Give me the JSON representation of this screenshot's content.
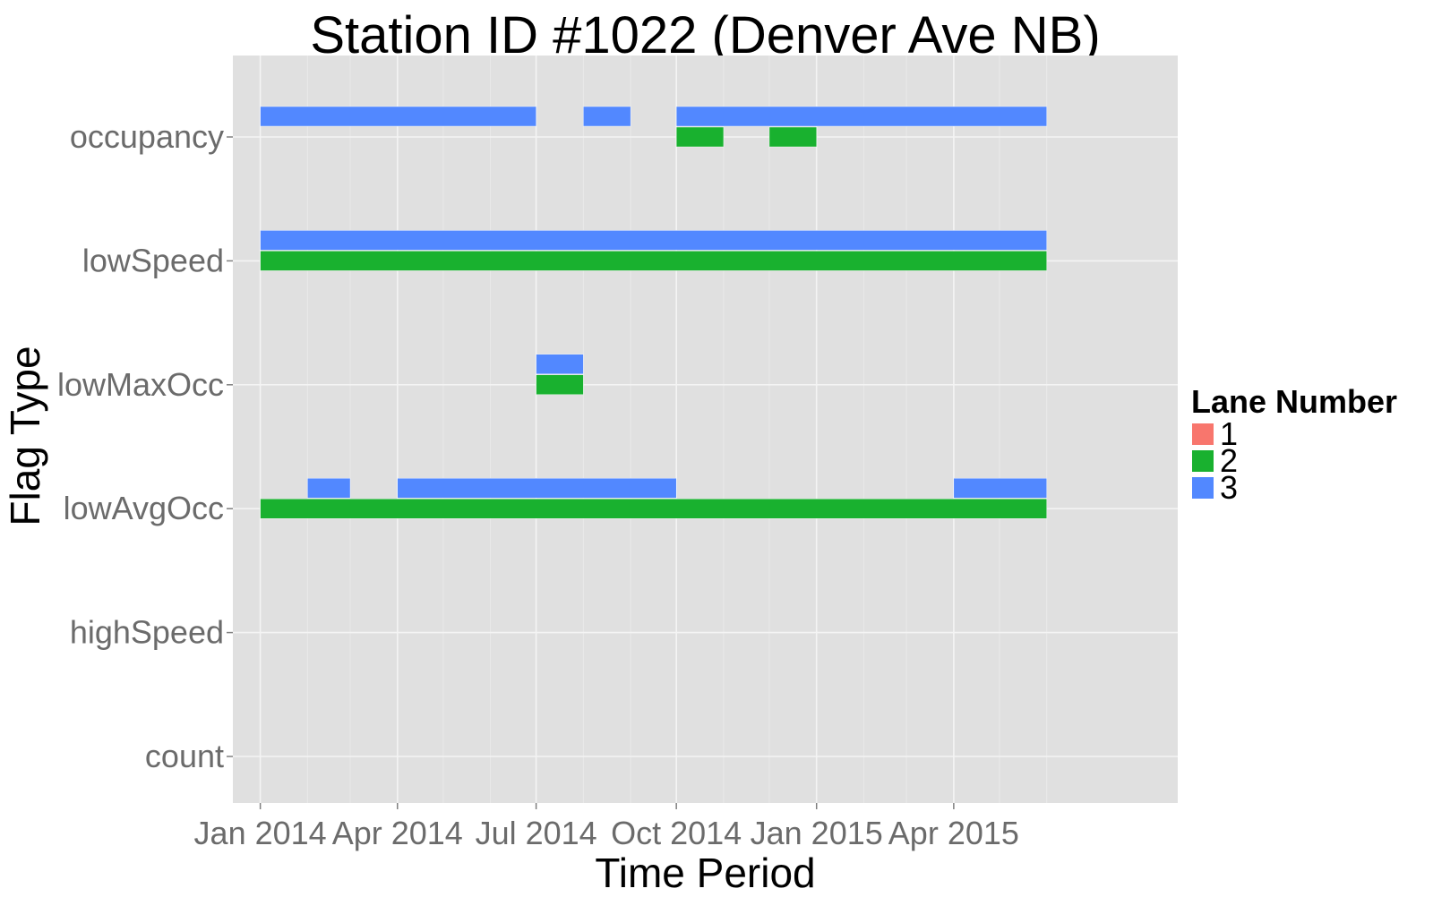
{
  "chart_data": {
    "type": "timeline",
    "title": "Station ID #1022 (Denver Ave NB)",
    "xlabel": "Time Period",
    "ylabel": "Flag Type",
    "x_ticks": [
      "Jan 2014",
      "Apr 2014",
      "Jul 2014",
      "Oct 2014",
      "Jan 2015",
      "Apr 2015"
    ],
    "xlim": [
      "2013-12-14",
      "2015-08-26"
    ],
    "categories": [
      "count",
      "highSpeed",
      "lowAvgOcc",
      "lowMaxOcc",
      "lowSpeed",
      "occupancy"
    ],
    "grid": true,
    "legend": {
      "title": "Lane Number",
      "placement": "right",
      "items": [
        {
          "label": "1",
          "color": "#f8766d"
        },
        {
          "label": "2",
          "color": "#19b12f"
        },
        {
          "label": "3",
          "color": "#5288ff"
        }
      ]
    },
    "series": [
      {
        "name": "3",
        "color": "#5288ff",
        "segments": [
          {
            "flag": "occupancy",
            "start": "2014-01-01",
            "end": "2014-07-01"
          },
          {
            "flag": "occupancy",
            "start": "2014-08-01",
            "end": "2014-09-01"
          },
          {
            "flag": "occupancy",
            "start": "2014-10-01",
            "end": "2015-06-01"
          },
          {
            "flag": "lowSpeed",
            "start": "2014-01-01",
            "end": "2015-06-01"
          },
          {
            "flag": "lowMaxOcc",
            "start": "2014-07-01",
            "end": "2014-08-01"
          },
          {
            "flag": "lowAvgOcc",
            "start": "2014-02-01",
            "end": "2014-03-01"
          },
          {
            "flag": "lowAvgOcc",
            "start": "2014-04-01",
            "end": "2014-10-01"
          },
          {
            "flag": "lowAvgOcc",
            "start": "2015-04-01",
            "end": "2015-06-01"
          }
        ]
      },
      {
        "name": "2",
        "color": "#19b12f",
        "segments": [
          {
            "flag": "occupancy",
            "start": "2014-10-01",
            "end": "2014-11-01"
          },
          {
            "flag": "occupancy",
            "start": "2014-12-01",
            "end": "2015-01-01"
          },
          {
            "flag": "lowSpeed",
            "start": "2014-01-01",
            "end": "2015-06-01"
          },
          {
            "flag": "lowMaxOcc",
            "start": "2014-07-01",
            "end": "2014-08-01"
          },
          {
            "flag": "lowAvgOcc",
            "start": "2014-01-01",
            "end": "2015-06-01"
          }
        ]
      }
    ]
  }
}
